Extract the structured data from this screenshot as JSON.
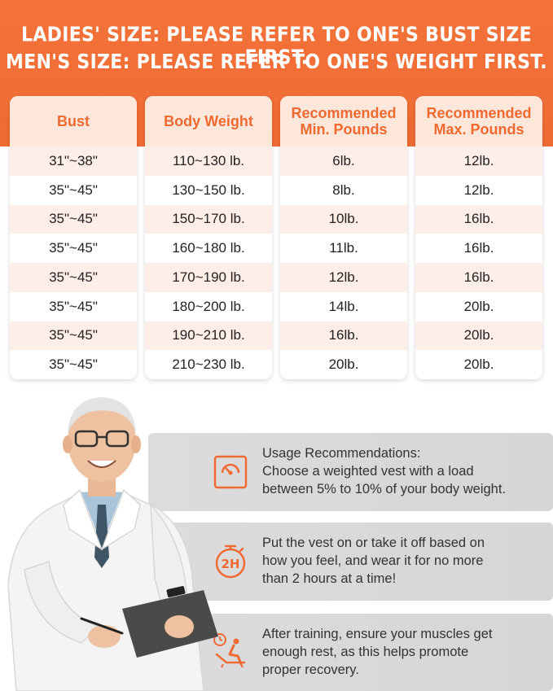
{
  "banner": {
    "line1": "LADIES' SIZE: PLEASE REFER TO ONE'S BUST SIZE FIRST.",
    "line2": "MEN'S SIZE: PLEASE REFER TO ONE'S WEIGHT FIRST."
  },
  "table": {
    "columns": [
      {
        "header": "Bust",
        "cells": [
          "31\"~38\"",
          "35\"~45\"",
          "35\"~45\"",
          "35\"~45\"",
          "35\"~45\"",
          "35\"~45\"",
          "35\"~45\"",
          "35\"~45\""
        ]
      },
      {
        "header": "Body Weight",
        "cells": [
          "110~130 lb.",
          "130~150 lb.",
          "150~170 lb.",
          "160~180 lb.",
          "170~190 lb.",
          "180~200 lb.",
          "190~210 lb.",
          "210~230 lb."
        ]
      },
      {
        "header": "Recommended\nMin. Pounds",
        "cells": [
          "6lb.",
          "8lb.",
          "10lb.",
          "11lb.",
          "12lb.",
          "14lb.",
          "16lb.",
          "20lb."
        ]
      },
      {
        "header": "Recommended\nMax. Pounds",
        "cells": [
          "12lb.",
          "12lb.",
          "16lb.",
          "16lb.",
          "16lb.",
          "20lb.",
          "20lb.",
          "20lb."
        ]
      }
    ]
  },
  "cards": [
    {
      "icon": "scale-icon",
      "text1": "Usage Recommendations:",
      "text2": "Choose a weighted vest with a load",
      "text3": "between 5% to 10% of your body weight."
    },
    {
      "icon": "timer-2h-icon",
      "icon_label": "2H",
      "text1": "Put the vest on or take it off based on",
      "text2": "how you feel, and wear it for no more",
      "text3": "than 2 hours at a time!"
    },
    {
      "icon": "rest-recovery-icon",
      "text1": "After training, ensure your muscles get",
      "text2": "enough rest, as this helps promote",
      "text3": "proper recovery."
    }
  ],
  "colors": {
    "accent": "#f06b34",
    "header_bg": "#fde6da",
    "stripe": "#fdeee7",
    "card_bg": "#d9d9d9"
  }
}
